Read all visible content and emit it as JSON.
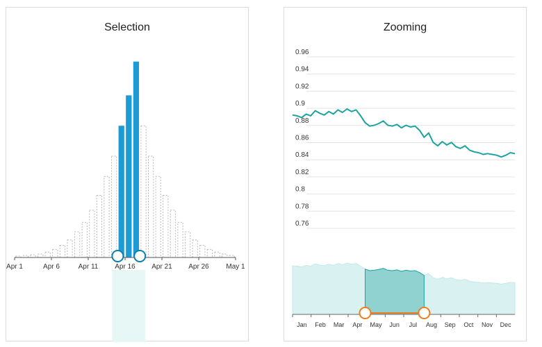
{
  "chart_data": [
    {
      "type": "bar",
      "title": "Selection",
      "categories": [
        "Apr 1",
        "Apr 2",
        "Apr 3",
        "Apr 4",
        "Apr 5",
        "Apr 6",
        "Apr 7",
        "Apr 8",
        "Apr 9",
        "Apr 10",
        "Apr 11",
        "Apr 12",
        "Apr 13",
        "Apr 14",
        "Apr 15",
        "Apr 16",
        "Apr 17",
        "Apr 18",
        "Apr 19",
        "Apr 20",
        "Apr 21",
        "Apr 22",
        "Apr 23",
        "Apr 24",
        "Apr 25",
        "Apr 26",
        "Apr 27",
        "Apr 28",
        "Apr 29",
        "Apr 30"
      ],
      "values": [
        2,
        3,
        4,
        5,
        8,
        12,
        18,
        26,
        38,
        52,
        70,
        92,
        120,
        150,
        195,
        240,
        290,
        195,
        150,
        120,
        92,
        70,
        52,
        38,
        26,
        18,
        12,
        8,
        5,
        3
      ],
      "selected_range": [
        "Apr 15",
        "Apr 17"
      ],
      "x_tick_labels": [
        "Apr 1",
        "Apr 6",
        "Apr 11",
        "Apr 16",
        "Apr 21",
        "Apr 26",
        "May 1"
      ],
      "ylim": [
        0,
        300
      ],
      "colors": {
        "selected": "#1c9bd4",
        "unselected": "#b8b8b8",
        "handle": "#0b7fb0",
        "band": "#e6f7f6"
      }
    },
    {
      "type": "line",
      "title": "Zooming",
      "xlabel": "",
      "ylabel": "",
      "ylim": [
        0.75,
        0.97
      ],
      "y_tick_labels": [
        "0.96",
        "0.94",
        "0.92",
        "0.9",
        "0.88",
        "0.86",
        "0.84",
        "0.82",
        "0.8",
        "0.78",
        "0.76"
      ],
      "series": [
        {
          "name": "value",
          "x": [
            0,
            1,
            2,
            3,
            4,
            5,
            6,
            7,
            8,
            9,
            10,
            11,
            12,
            13,
            14,
            15,
            16,
            17,
            18,
            19,
            20,
            21,
            22,
            23,
            24,
            25,
            26,
            27,
            28,
            29,
            30,
            31,
            32,
            33,
            34,
            35,
            36,
            37,
            38,
            39,
            40,
            41,
            42,
            43,
            44,
            45,
            46,
            47,
            48,
            49
          ],
          "values": [
            0.889,
            0.888,
            0.886,
            0.89,
            0.888,
            0.894,
            0.891,
            0.889,
            0.893,
            0.89,
            0.895,
            0.892,
            0.896,
            0.893,
            0.895,
            0.888,
            0.88,
            0.876,
            0.877,
            0.879,
            0.882,
            0.877,
            0.876,
            0.878,
            0.874,
            0.877,
            0.875,
            0.876,
            0.871,
            0.863,
            0.868,
            0.857,
            0.853,
            0.858,
            0.854,
            0.857,
            0.852,
            0.85,
            0.853,
            0.848,
            0.846,
            0.845,
            0.843,
            0.844,
            0.843,
            0.842,
            0.84,
            0.842,
            0.845,
            0.844
          ]
        }
      ],
      "navigator": {
        "months": [
          "Jan",
          "Feb",
          "Mar",
          "Apr",
          "May",
          "Jun",
          "Jul",
          "Aug",
          "Sep",
          "Oct",
          "Nov",
          "Dec"
        ],
        "zoom_range": [
          16,
          29
        ],
        "colors": {
          "line": "#1aa3a0",
          "fill_light": "#d9f2f1",
          "fill_selected": "#8fd2cf",
          "handle": "#f07b1d"
        }
      }
    }
  ],
  "panels": {
    "left_title": "Selection",
    "right_title": "Zooming"
  }
}
